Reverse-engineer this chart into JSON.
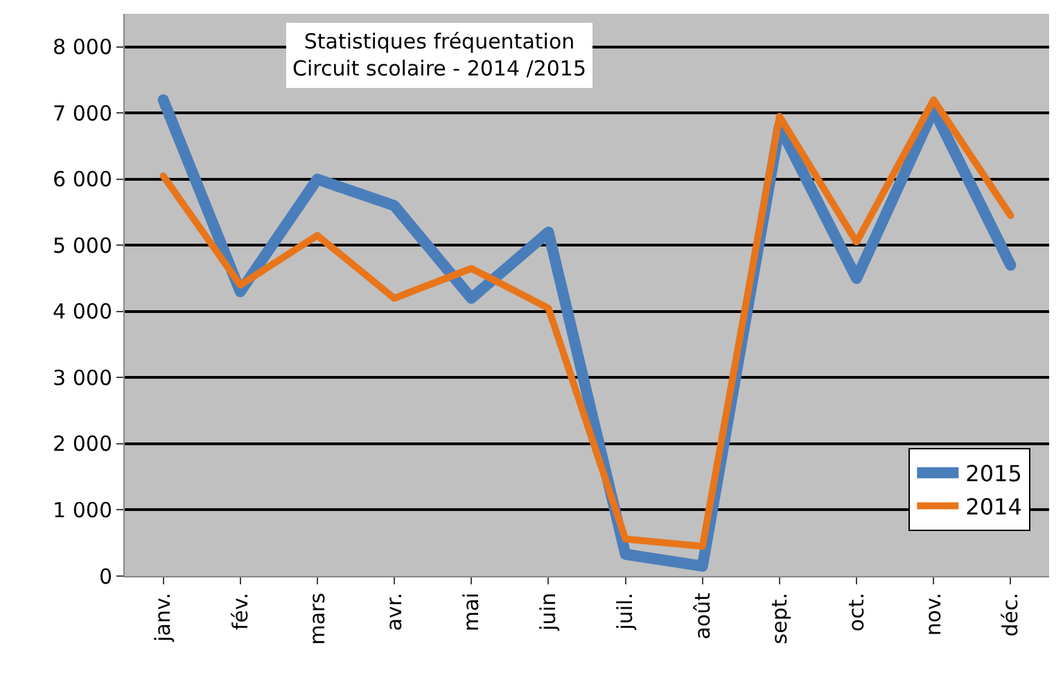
{
  "chart_data": {
    "type": "line",
    "title": "Statistiques fréquentation\nCircuit scolaire - 2014 /2015",
    "categories": [
      "janv.",
      "fév.",
      "mars",
      "avr.",
      "mai",
      "juin",
      "juil.",
      "août",
      "sept.",
      "oct.",
      "nov.",
      "déc."
    ],
    "series": [
      {
        "name": "2015",
        "color": "#4a7ebb",
        "values": [
          7200,
          4300,
          6000,
          5600,
          4200,
          5200,
          330,
          150,
          6800,
          4500,
          7050,
          4700
        ]
      },
      {
        "name": "2014",
        "color": "#e8751a",
        "values": [
          6050,
          4400,
          5150,
          4200,
          4650,
          4050,
          560,
          450,
          6950,
          5050,
          7200,
          5450
        ]
      }
    ],
    "ylim": [
      0,
      8500
    ],
    "yticks": [
      {
        "value": 0,
        "label": "0"
      },
      {
        "value": 1000,
        "label": "1 000"
      },
      {
        "value": 2000,
        "label": "2 000"
      },
      {
        "value": 3000,
        "label": "3 000"
      },
      {
        "value": 4000,
        "label": "4 000"
      },
      {
        "value": 5000,
        "label": "5 000"
      },
      {
        "value": 6000,
        "label": "6 000"
      },
      {
        "value": 7000,
        "label": "7 000"
      },
      {
        "value": 8000,
        "label": "8 000"
      }
    ],
    "grid": "y",
    "legend": "bottom right",
    "marker": "none",
    "line_style": "solid"
  }
}
